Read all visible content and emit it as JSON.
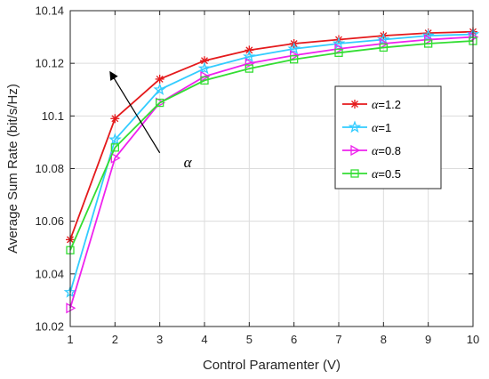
{
  "chart_data": {
    "type": "line",
    "xlabel": "Control Paramenter (V)",
    "ylabel": "Average Sum Rate (bit/s/Hz)",
    "xlim": [
      1,
      10
    ],
    "ylim": [
      10.02,
      10.14
    ],
    "xticks": [
      1,
      2,
      3,
      4,
      5,
      6,
      7,
      8,
      9,
      10
    ],
    "yticks": [
      10.02,
      10.04,
      10.06,
      10.08,
      10.1,
      10.12,
      10.14
    ],
    "ytick_labels": [
      "10.02",
      "10.04",
      "10.06",
      "10.08",
      "10.1",
      "10.12",
      "10.14"
    ],
    "grid": true,
    "legend_position": "right",
    "x": [
      1,
      2,
      3,
      4,
      5,
      6,
      7,
      8,
      9,
      10
    ],
    "series": [
      {
        "label": "=1.2",
        "symbol": "α",
        "color": "#e41a1c",
        "marker": "asterisk",
        "values": [
          10.053,
          10.099,
          10.114,
          10.121,
          10.125,
          10.1275,
          10.129,
          10.1305,
          10.1315,
          10.132
        ]
      },
      {
        "label": "=1",
        "symbol": "α",
        "color": "#33ccff",
        "marker": "star",
        "values": [
          10.033,
          10.091,
          10.11,
          10.118,
          10.1225,
          10.1255,
          10.1275,
          10.129,
          10.1305,
          10.131
        ]
      },
      {
        "label": "=0.8",
        "symbol": "α",
        "color": "#ee22ee",
        "marker": "triangle-right",
        "values": [
          10.027,
          10.084,
          10.105,
          10.115,
          10.12,
          10.123,
          10.1255,
          10.1275,
          10.129,
          10.13
        ]
      },
      {
        "label": "=0.5",
        "symbol": "α",
        "color": "#33dd33",
        "marker": "square",
        "values": [
          10.049,
          10.088,
          10.105,
          10.1135,
          10.118,
          10.1215,
          10.124,
          10.126,
          10.1275,
          10.1285
        ]
      }
    ],
    "annotation": {
      "text": "α",
      "arrow": {
        "from": [
          3.0,
          10.086
        ],
        "to": [
          1.9,
          10.1165
        ]
      }
    }
  }
}
